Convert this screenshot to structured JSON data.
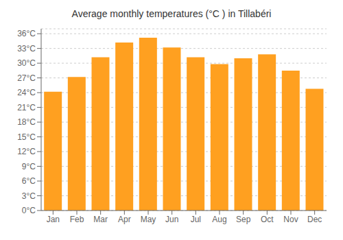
{
  "chart_data": {
    "type": "bar",
    "title": "Average monthly temperatures (°C ) in Tillabéri",
    "categories": [
      "Jan",
      "Feb",
      "Mar",
      "Apr",
      "May",
      "Jun",
      "Jul",
      "Aug",
      "Sep",
      "Oct",
      "Nov",
      "Dec"
    ],
    "values": [
      24.2,
      27.2,
      31.2,
      34.2,
      35.2,
      33.2,
      31.2,
      29.8,
      31.0,
      31.8,
      28.5,
      24.8
    ],
    "color": "#FFA020",
    "ylim": [
      0,
      37
    ],
    "yticks": [
      {
        "value": 0,
        "label": "0°C"
      },
      {
        "value": 3,
        "label": "3°C"
      },
      {
        "value": 6,
        "label": "6°C"
      },
      {
        "value": 9,
        "label": "9°C"
      },
      {
        "value": 12,
        "label": "12°C"
      },
      {
        "value": 15,
        "label": "15°C"
      },
      {
        "value": 18,
        "label": "18°C"
      },
      {
        "value": 21,
        "label": "21°C"
      },
      {
        "value": 24,
        "label": "24°C"
      },
      {
        "value": 27,
        "label": "27°C"
      },
      {
        "value": 30,
        "label": "30°C"
      },
      {
        "value": 33,
        "label": "33°C"
      },
      {
        "value": 36,
        "label": "36°C"
      }
    ],
    "grid": true
  }
}
